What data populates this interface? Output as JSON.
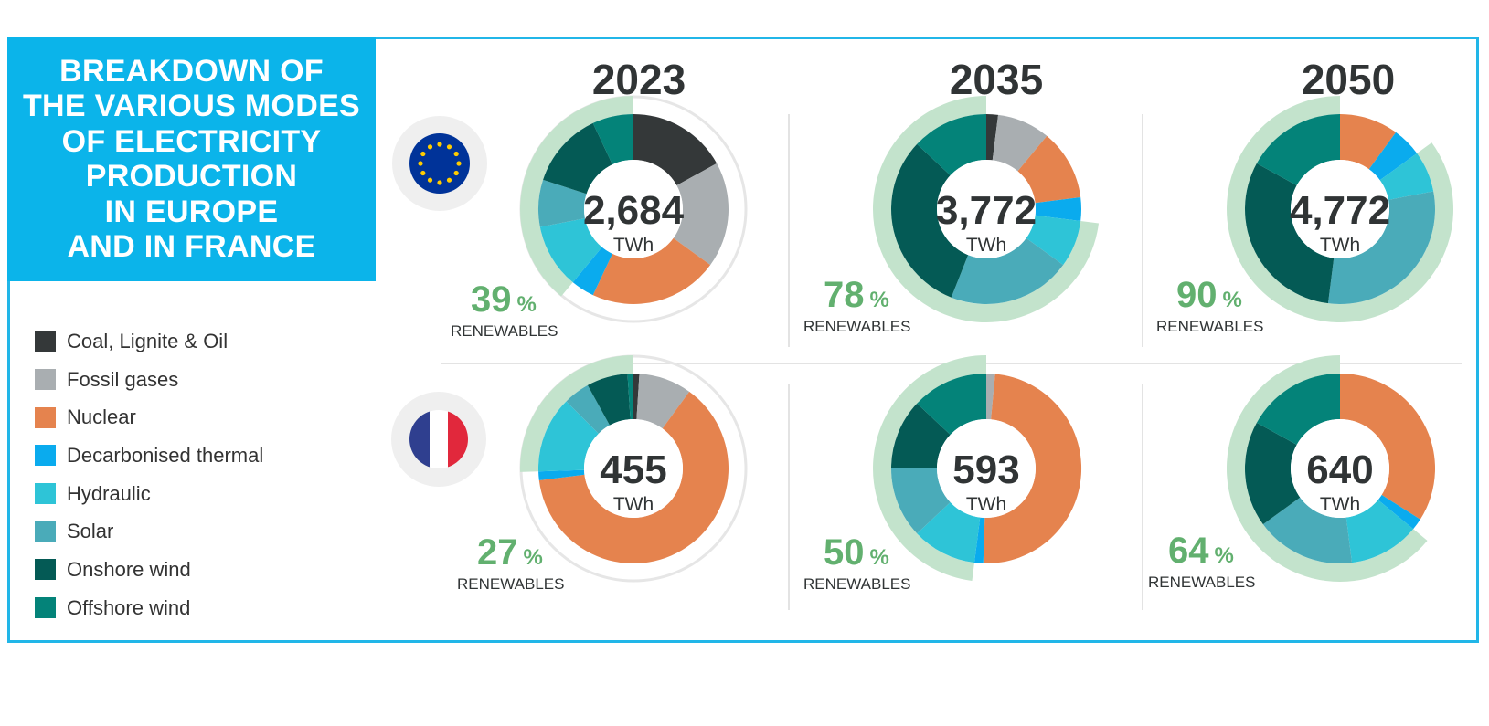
{
  "title": "BREAKDOWN OF\nTHE VARIOUS MODES\nOF ELECTRICITY\nPRODUCTION\nIN EUROPE\nAND IN FRANCE",
  "legend": [
    {
      "label": "Coal, Lignite & Oil",
      "color": "#343839"
    },
    {
      "label": "Fossil gases",
      "color": "#a9aeb1"
    },
    {
      "label": "Nuclear",
      "color": "#e5834e"
    },
    {
      "label": "Decarbonised thermal",
      "color": "#0aabee"
    },
    {
      "label": "Hydraulic",
      "color": "#2ec4d7"
    },
    {
      "label": "Solar",
      "color": "#4aabb9"
    },
    {
      "label": "Onshore wind",
      "color": "#045a55"
    },
    {
      "label": "Offshore wind",
      "color": "#048379"
    }
  ],
  "icons": {
    "eu": "eu-flag-icon",
    "france": "france-flag-icon"
  },
  "renewable_ring_color": "#c3e3cc",
  "chart_data": {
    "type": "donut",
    "years": [
      "2023",
      "2035",
      "2050"
    ],
    "regions": [
      {
        "name": "Europe",
        "flag": "eu-flag-icon",
        "charts": [
          {
            "year": "2023",
            "total": "2,684",
            "unit": "TWh",
            "renewables_pct": 39,
            "renewables_label": "RENEWABLES",
            "shares": {
              "Coal, Lignite & Oil": 17,
              "Fossil gases": 18,
              "Nuclear": 22,
              "Decarbonised thermal": 4,
              "Hydraulic": 11,
              "Solar": 8,
              "Onshore wind": 13,
              "Offshore wind": 7
            }
          },
          {
            "year": "2035",
            "total": "3,772",
            "unit": "TWh",
            "renewables_pct": 78,
            "renewables_label": "RENEWABLES",
            "shares": {
              "Coal, Lignite & Oil": 2,
              "Fossil gases": 9,
              "Nuclear": 12,
              "Decarbonised thermal": 4,
              "Hydraulic": 8,
              "Solar": 21,
              "Onshore wind": 31,
              "Offshore wind": 13
            }
          },
          {
            "year": "2050",
            "total": "4,772",
            "unit": "TWh",
            "renewables_pct": 90,
            "renewables_label": "RENEWABLES",
            "shares": {
              "Coal, Lignite & Oil": 0,
              "Fossil gases": 0,
              "Nuclear": 10,
              "Decarbonised thermal": 5,
              "Hydraulic": 7,
              "Solar": 30,
              "Onshore wind": 31,
              "Offshore wind": 17
            }
          }
        ]
      },
      {
        "name": "France",
        "flag": "france-flag-icon",
        "charts": [
          {
            "year": "2023",
            "total": "455",
            "unit": "TWh",
            "renewables_pct": 27,
            "renewables_label": "RENEWABLES",
            "shares": {
              "Coal, Lignite & Oil": 1,
              "Fossil gases": 9,
              "Nuclear": 63,
              "Decarbonised thermal": 1.5,
              "Hydraulic": 13,
              "Solar": 4.5,
              "Onshore wind": 7,
              "Offshore wind": 1
            }
          },
          {
            "year": "2035",
            "total": "593",
            "unit": "TWh",
            "renewables_pct": 50,
            "renewables_label": "RENEWABLES",
            "shares": {
              "Coal, Lignite & Oil": 0,
              "Fossil gases": 1.5,
              "Nuclear": 49,
              "Decarbonised thermal": 1.5,
              "Hydraulic": 11,
              "Solar": 12,
              "Onshore wind": 12,
              "Offshore wind": 13
            }
          },
          {
            "year": "2050",
            "total": "640",
            "unit": "TWh",
            "renewables_pct": 64,
            "renewables_label": "RENEWABLES",
            "shares": {
              "Coal, Lignite & Oil": 0,
              "Fossil gases": 0,
              "Nuclear": 34,
              "Decarbonised thermal": 2,
              "Hydraulic": 12,
              "Solar": 17,
              "Onshore wind": 18,
              "Offshore wind": 17
            }
          }
        ]
      }
    ]
  }
}
